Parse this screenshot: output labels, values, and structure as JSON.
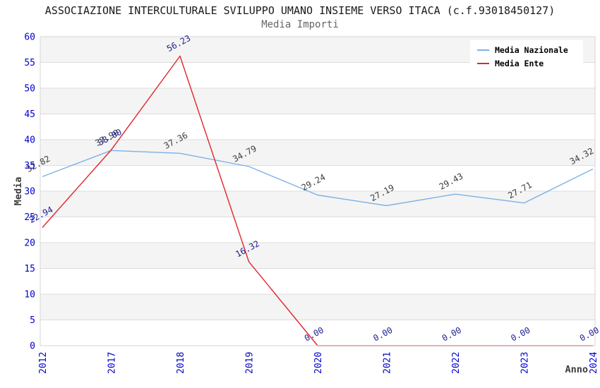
{
  "title": "ASSOCIAZIONE INTERCULTURALE SVILUPPO UMANO INSIEME VERSO ITACA (c.f.93018450127)",
  "subtitle": "Media Importi",
  "chart_data": {
    "type": "line",
    "x_categories": [
      "2012",
      "2017",
      "2018",
      "2019",
      "2020",
      "2021",
      "2022",
      "2023",
      "2024"
    ],
    "xlabel": "Anno",
    "ylabel": "Media",
    "ylim": [
      0,
      60
    ],
    "ytick_step": 5,
    "yticks": [
      "0",
      "5",
      "10",
      "15",
      "20",
      "25",
      "30",
      "35",
      "40",
      "45",
      "50",
      "55",
      "60"
    ],
    "grid": "horizontal gridlines with alternating shaded bands",
    "legend_position": "top-right",
    "series": [
      {
        "name": "Media Nazionale",
        "color": "#7db1e6",
        "label_color": "#3c3c3c",
        "values": [
          32.82,
          37.9,
          37.36,
          34.79,
          29.24,
          27.19,
          29.43,
          27.71,
          34.32
        ],
        "point_labels": [
          "32.82",
          "37.90",
          "37.36",
          "34.79",
          "29.24",
          "27.19",
          "29.43",
          "27.71",
          "34.32"
        ]
      },
      {
        "name": "Media Ente",
        "color": "#e0262c",
        "label_color": "#1d1d8f",
        "values": [
          22.94,
          38.0,
          56.23,
          16.32,
          0.0,
          0.0,
          0.0,
          0.0,
          0.0
        ],
        "point_labels": [
          "22.94",
          "38.00",
          "56.23",
          "16.32",
          "0.00",
          "0.00",
          "0.00",
          "0.00",
          "0.00"
        ]
      }
    ]
  },
  "plot_colors": {
    "band_fill": "#f4f4f4",
    "gridline": "#dcdcdc",
    "plot_border": "#d4d4d4",
    "tick_label": "#0000cc",
    "axis_title": "#3c3c3c",
    "title_color": "#1a1a1a",
    "subtitle_color": "#666666"
  }
}
